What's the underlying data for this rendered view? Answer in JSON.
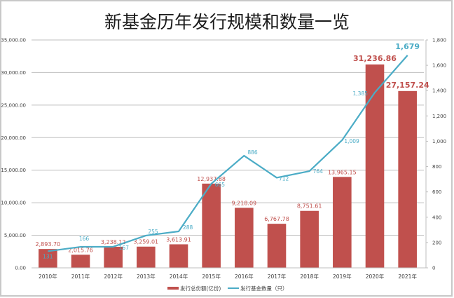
{
  "chart_data": {
    "type": "bar+line",
    "title": "新基金历年发行规模和数量一览",
    "categories": [
      "2010年",
      "2011年",
      "2012年",
      "2013年",
      "2014年",
      "2015年",
      "2016年",
      "2017年",
      "2018年",
      "2019年",
      "2020年",
      "2021年"
    ],
    "series": [
      {
        "name": "发行总份额(亿份)",
        "type": "bar",
        "axis": "left",
        "color": "#c0504d",
        "values": [
          2893.7,
          2015.76,
          3238.12,
          3259.01,
          3613.91,
          12937.88,
          9218.09,
          6767.78,
          8751.61,
          13965.15,
          31236.86,
          27157.24
        ],
        "labels": [
          "2,893.70",
          "2,015.76",
          "3,238.12",
          "3,259.01",
          "3,613.91",
          "12,937.88",
          "9,218.09",
          "6,767.78",
          "8,751.61",
          "13,965.15",
          "31,236.86",
          "27,157.24"
        ]
      },
      {
        "name": "发行基金数量（只）",
        "type": "line",
        "axis": "right",
        "color": "#4bacc6",
        "values": [
          131,
          166,
          167,
          255,
          288,
          665,
          886,
          712,
          764,
          1009,
          1385,
          1679
        ],
        "labels": [
          "131",
          "166",
          "167",
          "255",
          "288",
          "665",
          "886",
          "712",
          "764",
          "1,009",
          "1,385",
          "1,679"
        ]
      }
    ],
    "y_left": {
      "range": [
        0,
        35000
      ],
      "ticks": [
        "0.00",
        "5,000.00",
        "10,000.00",
        "15,000.00",
        "20,000.00",
        "25,000.00",
        "30,000.00",
        "35,000.00"
      ],
      "tick_values": [
        0,
        5000,
        10000,
        15000,
        20000,
        25000,
        30000,
        35000
      ]
    },
    "y_right": {
      "range": [
        0,
        1800
      ],
      "ticks": [
        "0",
        "200",
        "400",
        "600",
        "800",
        "1,000",
        "1,200",
        "1,400",
        "1,600",
        "1,800"
      ],
      "tick_values": [
        0,
        200,
        400,
        600,
        800,
        1000,
        1200,
        1400,
        1600,
        1800
      ]
    },
    "grid": true,
    "legend": "bottom"
  }
}
